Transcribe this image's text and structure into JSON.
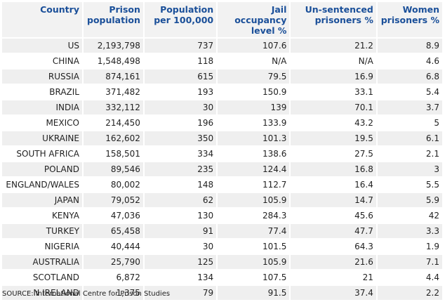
{
  "table": {
    "headers": [
      "Country",
      "Prison population",
      "Population per 100,000",
      "Jail occupancy level %",
      "Un-sentenced prisoners %",
      "Women prisoners %"
    ],
    "rows": [
      [
        "US",
        "2,193,798",
        "737",
        "107.6",
        "21.2",
        "8.9"
      ],
      [
        "CHINA",
        "1,548,498",
        "118",
        "N/A",
        "N/A",
        "4.6"
      ],
      [
        "RUSSIA",
        "874,161",
        "615",
        "79.5",
        "16.9",
        "6.8"
      ],
      [
        "BRAZIL",
        "371,482",
        "193",
        "150.9",
        "33.1",
        "5.4"
      ],
      [
        "INDIA",
        "332,112",
        "30",
        "139",
        "70.1",
        "3.7"
      ],
      [
        "MEXICO",
        "214,450",
        "196",
        "133.9",
        "43.2",
        "5"
      ],
      [
        "UKRAINE",
        "162,602",
        "350",
        "101.3",
        "19.5",
        "6.1"
      ],
      [
        "SOUTH AFRICA",
        "158,501",
        "334",
        "138.6",
        "27.5",
        "2.1"
      ],
      [
        "POLAND",
        "89,546",
        "235",
        "124.4",
        "16.8",
        "3"
      ],
      [
        "ENGLAND/WALES",
        "80,002",
        "148",
        "112.7",
        "16.4",
        "5.5"
      ],
      [
        "JAPAN",
        "79,052",
        "62",
        "105.9",
        "14.7",
        "5.9"
      ],
      [
        "KENYA",
        "47,036",
        "130",
        "284.3",
        "45.6",
        "42"
      ],
      [
        "TURKEY",
        "65,458",
        "91",
        "77.4",
        "47.7",
        "3.3"
      ],
      [
        "NIGERIA",
        "40,444",
        "30",
        "101.5",
        "64.3",
        "1.9"
      ],
      [
        "AUSTRALIA",
        "25,790",
        "125",
        "105.9",
        "21.6",
        "7.1"
      ],
      [
        "SCOTLAND",
        "6,872",
        "134",
        "107.5",
        "21",
        "4.4"
      ],
      [
        "N IRELAND",
        "1,375",
        "79",
        "91.5",
        "37.4",
        "2.2"
      ]
    ]
  },
  "source": "SOURCE: International Centre for Prison Studies",
  "colors": {
    "header_text": "#1a4f99",
    "header_bg": "#f2f2f2",
    "row_shade": "#efefef",
    "text": "#222222"
  }
}
